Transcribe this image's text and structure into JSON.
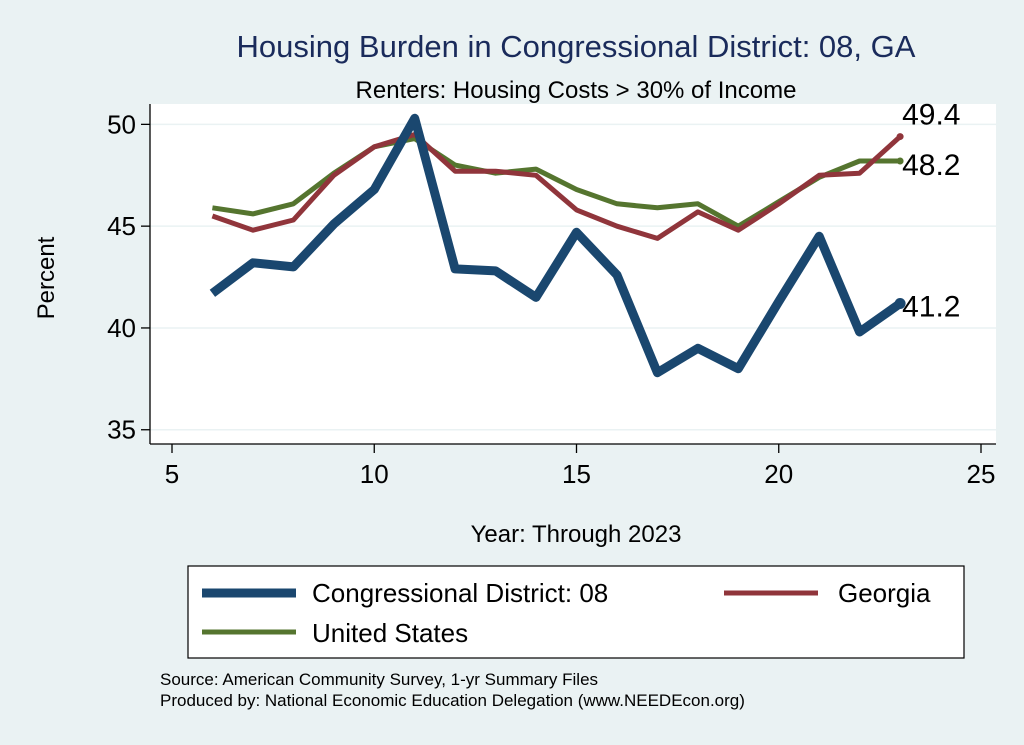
{
  "chart_data": {
    "type": "line",
    "title": "Housing Burden in Congressional District:  08, GA",
    "subtitle": "Renters: Housing Costs > 30% of Income",
    "xlabel": "Year: Through 2023",
    "ylabel": "Percent",
    "xlim": [
      5,
      25
    ],
    "ylim": [
      34.3,
      51
    ],
    "x_ticks": [
      "5",
      "10",
      "15",
      "20",
      "25"
    ],
    "y_ticks": [
      "35",
      "40",
      "45",
      "50"
    ],
    "x": [
      6,
      7,
      8,
      9,
      10,
      11,
      12,
      13,
      14,
      15,
      16,
      17,
      18,
      19,
      20,
      21,
      22,
      23
    ],
    "series": [
      {
        "name": "Congressional District:  08",
        "color": "#1a476f",
        "values": [
          41.7,
          43.2,
          43.0,
          45.1,
          46.8,
          50.3,
          42.9,
          42.8,
          41.5,
          44.7,
          42.6,
          37.8,
          39.0,
          38.0,
          41.3,
          44.5,
          39.8,
          41.2
        ],
        "end_label": "41.2"
      },
      {
        "name": "Georgia",
        "color": "#90353b",
        "values": [
          45.5,
          44.8,
          45.3,
          47.5,
          48.9,
          49.5,
          47.7,
          47.7,
          47.5,
          45.8,
          45.0,
          44.4,
          45.7,
          44.8,
          46.1,
          47.5,
          47.6,
          49.4
        ],
        "end_label": "49.4"
      },
      {
        "name": "United States",
        "color": "#55752f",
        "values": [
          45.9,
          45.6,
          46.1,
          47.6,
          48.9,
          49.3,
          48.0,
          47.6,
          47.8,
          46.8,
          46.1,
          45.9,
          46.1,
          45.0,
          46.2,
          47.4,
          48.2,
          48.2
        ],
        "end_label": "48.2"
      }
    ],
    "legend_position": "bottom",
    "grid": true
  },
  "source_note": "Source: American Community Survey, 1-yr Summary Files",
  "producer_note": "Produced by: National Economic Education Delegation (www.NEEDEcon.org)"
}
